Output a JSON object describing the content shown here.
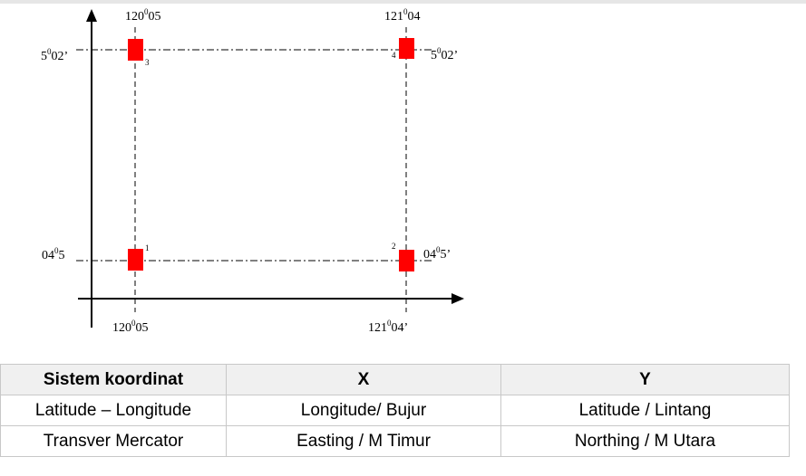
{
  "diagram": {
    "top_left_lon_base": "120",
    "top_left_lon_sup": "0",
    "top_left_lon_min": "05",
    "top_right_lon_base": "121",
    "top_right_lon_sup": "0",
    "top_right_lon_min": "04",
    "bottom_left_lon_base": "120",
    "bottom_left_lon_sup": "0",
    "bottom_left_lon_min": "05",
    "bottom_right_lon_base": "121",
    "bottom_right_lon_sup": "0",
    "bottom_right_lon_min": "04’",
    "left_top_lat_base": "5",
    "left_top_lat_sup": "0",
    "left_top_lat_min": "02’",
    "right_top_lat_base": "5",
    "right_top_lat_sup": "0",
    "right_top_lat_min": "02’",
    "left_bottom_lat_base": "04",
    "left_bottom_lat_sup": "0",
    "left_bottom_lat_min": "5",
    "right_bottom_lat_base": "04",
    "right_bottom_lat_sup": "0",
    "right_bottom_lat_min": "5’",
    "points": [
      "1",
      "2",
      "3",
      "4"
    ],
    "marker_color": "#ff0000"
  },
  "table": {
    "headers": [
      "Sistem koordinat",
      "X",
      "Y"
    ],
    "rows": [
      [
        "Latitude – Longitude",
        "Longitude/ Bujur",
        "Latitude / Lintang"
      ],
      [
        "Transver Mercator",
        "Easting / M Timur",
        "Northing  / M Utara"
      ]
    ]
  }
}
